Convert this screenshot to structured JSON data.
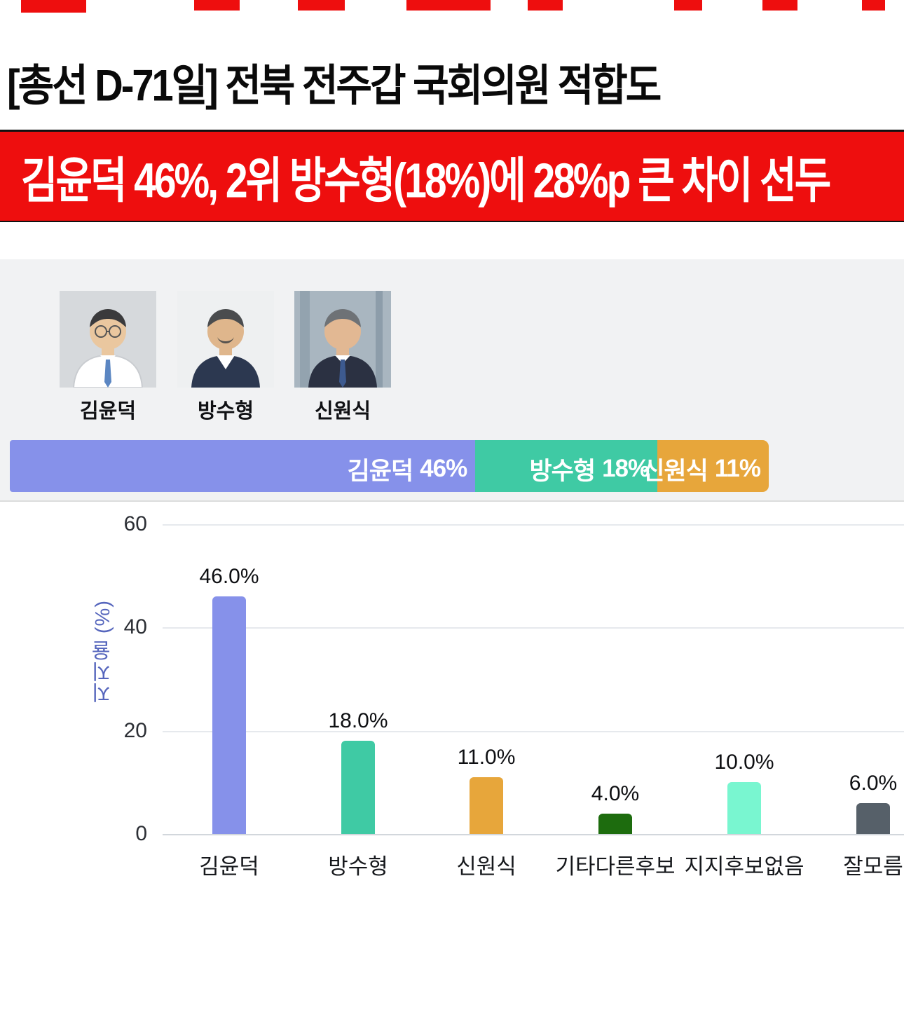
{
  "headline": {
    "text": "[총선 D-71일] 전북 전주갑 국회의원 적합도"
  },
  "banner": {
    "text": "김윤덕 46%, 2위 방수형(18%)에 28%p 큰 차이 선두",
    "bg_color": "#ee0e0e",
    "text_color": "#ffffff"
  },
  "candidates": [
    {
      "name": "김윤덕"
    },
    {
      "name": "방수형"
    },
    {
      "name": "신원식"
    }
  ],
  "stacked_bar": {
    "scale_total": 75,
    "segments": [
      {
        "label": "김윤덕",
        "value": 46,
        "value_label": "46%",
        "color": "#8691ea"
      },
      {
        "label": "방수형",
        "value": 18,
        "value_label": "18%",
        "color": "#3fcaa4"
      },
      {
        "label": "신원식",
        "value": 11,
        "value_label": "11%",
        "color": "#e7a63b"
      }
    ]
  },
  "chart_data": {
    "type": "bar",
    "title": "",
    "xlabel": "",
    "ylabel": "지지율 (%)",
    "categories": [
      "김윤덕",
      "방수형",
      "신원식",
      "기타다른후보",
      "지지후보없음",
      "잘모름"
    ],
    "values": [
      46.0,
      18.0,
      11.0,
      4.0,
      10.0,
      6.0
    ],
    "value_labels": [
      "46.0%",
      "18.0%",
      "11.0%",
      "4.0%",
      "10.0%",
      "6.0%"
    ],
    "bar_colors": [
      "#8691ea",
      "#3fcaa4",
      "#e7a63b",
      "#1d6c0e",
      "#79f6d0",
      "#566069"
    ],
    "yticks": [
      0,
      20,
      40,
      60
    ],
    "ylim": [
      0,
      60
    ],
    "grid": true,
    "legend": "none"
  }
}
